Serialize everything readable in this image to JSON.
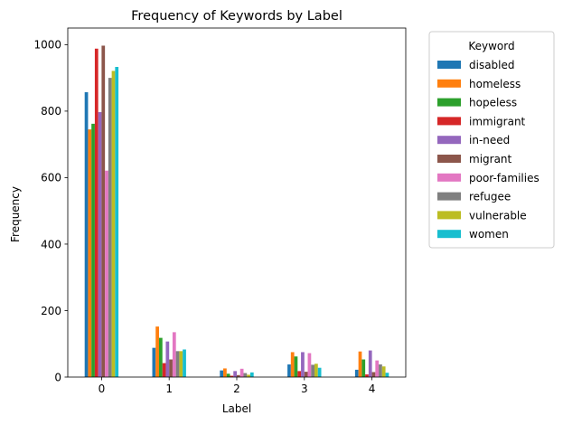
{
  "chart_data": {
    "type": "bar",
    "title": "Frequency of Keywords by Label",
    "xlabel": "Label",
    "ylabel": "Frequency",
    "categories": [
      "0",
      "1",
      "2",
      "3",
      "4"
    ],
    "ylim": [
      0,
      1050
    ],
    "yticks": [
      0,
      200,
      400,
      600,
      800,
      1000
    ],
    "grid": false,
    "legend": {
      "title": "Keyword",
      "placement": "outside-top-right"
    },
    "series": [
      {
        "name": "disabled",
        "color": "#1f77b4",
        "values": [
          857,
          88,
          20,
          38,
          22
        ]
      },
      {
        "name": "homeless",
        "color": "#ff7f0e",
        "values": [
          745,
          152,
          26,
          75,
          77
        ]
      },
      {
        "name": "hopeless",
        "color": "#2ca02c",
        "values": [
          762,
          118,
          10,
          62,
          53
        ]
      },
      {
        "name": "immigrant",
        "color": "#d62728",
        "values": [
          988,
          42,
          4,
          18,
          8
        ]
      },
      {
        "name": "in-need",
        "color": "#9467bd",
        "values": [
          797,
          107,
          18,
          75,
          80
        ]
      },
      {
        "name": "migrant",
        "color": "#8c564b",
        "values": [
          997,
          53,
          6,
          16,
          15
        ]
      },
      {
        "name": "poor-families",
        "color": "#e377c2",
        "values": [
          621,
          135,
          25,
          72,
          50
        ]
      },
      {
        "name": "refugee",
        "color": "#7f7f7f",
        "values": [
          900,
          78,
          12,
          37,
          38
        ]
      },
      {
        "name": "vulnerable",
        "color": "#bcbd22",
        "values": [
          921,
          78,
          7,
          40,
          32
        ]
      },
      {
        "name": "women",
        "color": "#17becf",
        "values": [
          933,
          83,
          14,
          28,
          13
        ]
      }
    ]
  }
}
